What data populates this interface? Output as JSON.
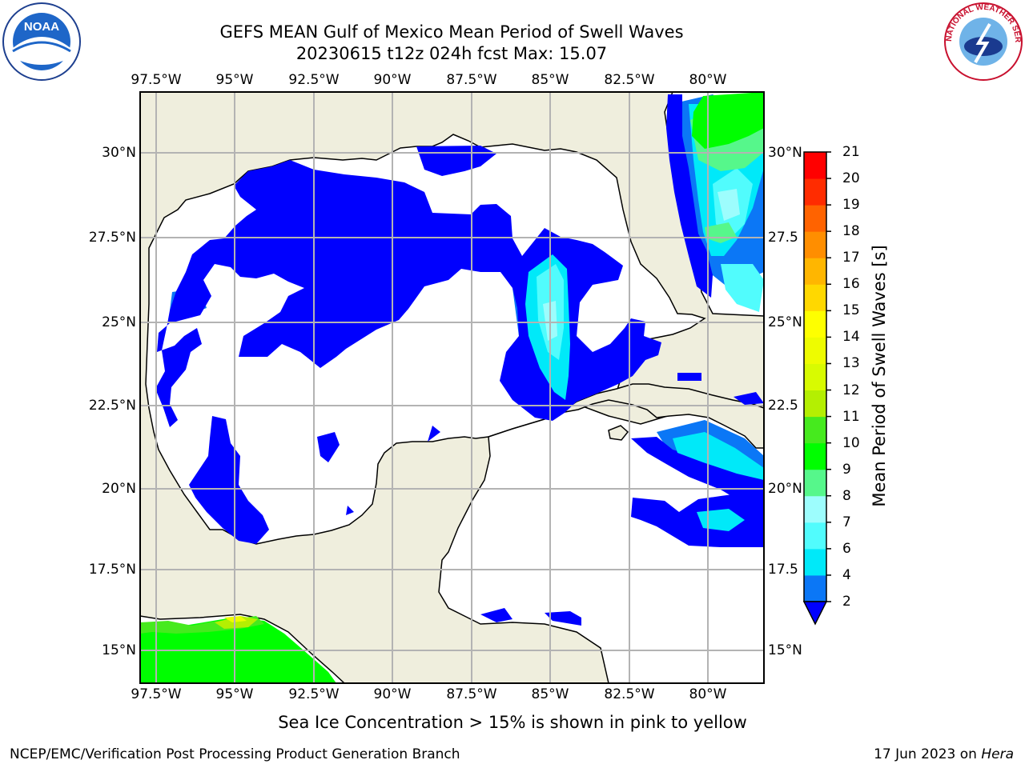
{
  "header": {
    "title_line1": "GEFS MEAN Gulf of Mexico Mean Period of Swell Waves",
    "title_line2": "20230615 t12z 024h fcst   Max: 15.07"
  },
  "logos": {
    "left": {
      "icon": "noaa-logo",
      "text": "NOAA"
    },
    "right": {
      "icon": "nws-logo",
      "text": "NATIONAL WEATHER SERVICE"
    }
  },
  "map": {
    "lon_ticks": [
      "97.5°W",
      "95°W",
      "92.5°W",
      "90°W",
      "87.5°W",
      "85°W",
      "82.5°W",
      "80°W"
    ],
    "lat_ticks_left": [
      "30°N",
      "27.5°N",
      "25°N",
      "22.5°N",
      "20°N",
      "17.5°N",
      "15°N"
    ],
    "lat_ticks_right": [
      "30°N",
      "27.5",
      "25°N",
      "22.5",
      "20°N",
      "17.5",
      "15°N"
    ],
    "colors": {
      "land": "#efeedd",
      "ocean": "#ffffff",
      "grid": "#b3b3b3"
    }
  },
  "colorbar": {
    "label": "Mean Period of Swell Waves [s]",
    "ticks": [
      "2",
      "4",
      "6",
      "7",
      "8",
      "9",
      "10",
      "11",
      "12",
      "13",
      "14",
      "15",
      "16",
      "17",
      "18",
      "19",
      "20",
      "21"
    ],
    "colors": [
      "#0000fe",
      "#0b77f6",
      "#00e9f9",
      "#51fcfd",
      "#9dfdfd",
      "#56f78b",
      "#00fe00",
      "#46ea1e",
      "#b4ef02",
      "#d8fb01",
      "#eefc00",
      "#feff00",
      "#ffd800",
      "#ffb600",
      "#ff8e00",
      "#ff6300",
      "#ff2c00",
      "#ff0000"
    ]
  },
  "note": "Sea Ice Concentration > 15% is shown in pink to yellow",
  "footer": {
    "left": "NCEP/EMC/Verification Post Processing Product Generation Branch",
    "right_date": "17 Jun 2023 on ",
    "right_host": "Hera"
  }
}
